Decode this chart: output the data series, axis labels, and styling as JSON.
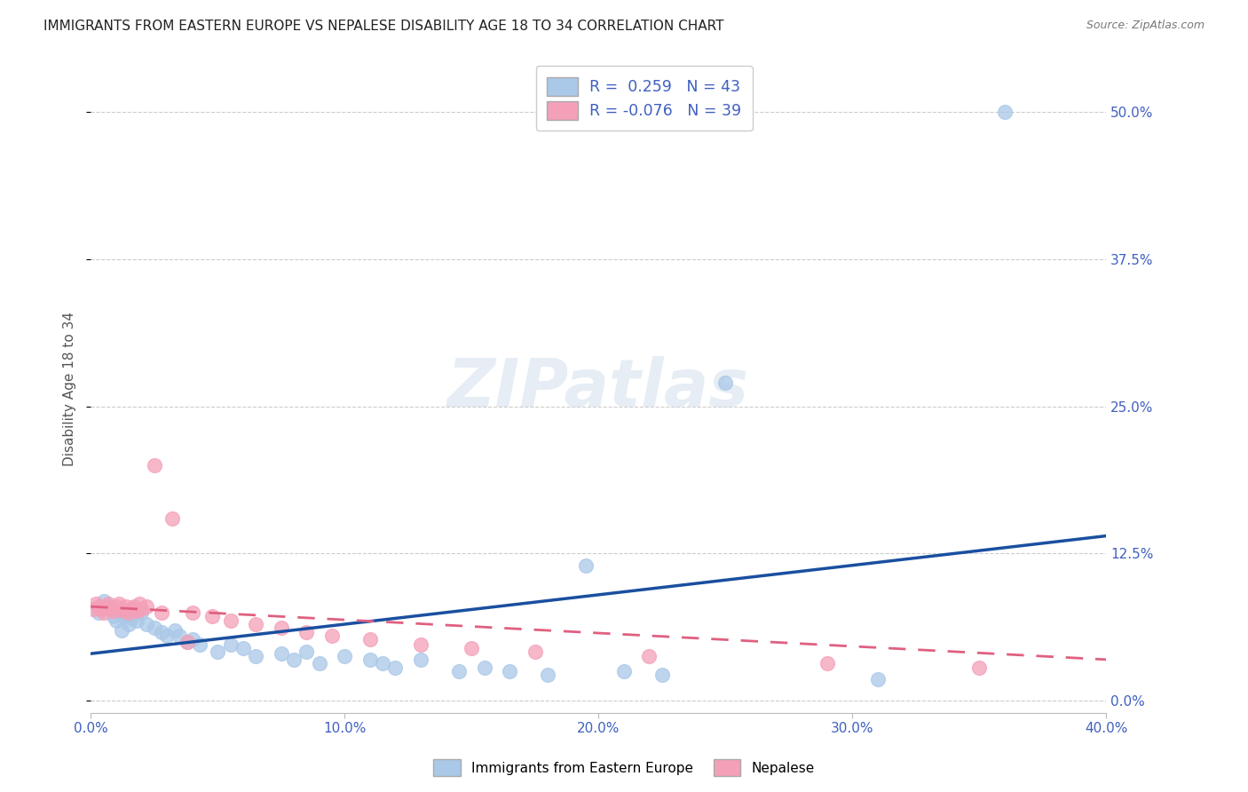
{
  "title": "IMMIGRANTS FROM EASTERN EUROPE VS NEPALESE DISABILITY AGE 18 TO 34 CORRELATION CHART",
  "source": "Source: ZipAtlas.com",
  "ylabel": "Disability Age 18 to 34",
  "xlim": [
    0.0,
    0.4
  ],
  "ylim": [
    -0.01,
    0.54
  ],
  "yticks": [
    0.0,
    0.125,
    0.25,
    0.375,
    0.5
  ],
  "ytick_labels": [
    "0.0%",
    "12.5%",
    "25.0%",
    "37.5%",
    "50.0%"
  ],
  "xticks": [
    0.0,
    0.1,
    0.2,
    0.3,
    0.4
  ],
  "xtick_labels": [
    "0.0%",
    "10.0%",
    "20.0%",
    "30.0%",
    "40.0%"
  ],
  "blue_R": 0.259,
  "blue_N": 43,
  "pink_R": -0.076,
  "pink_N": 39,
  "blue_color": "#aac8e8",
  "pink_color": "#f4a0b8",
  "blue_line_color": "#1a4fa0",
  "pink_line_color": "#e06080",
  "blue_scatter_x": [
    0.003,
    0.005,
    0.007,
    0.009,
    0.01,
    0.012,
    0.013,
    0.015,
    0.016,
    0.018,
    0.02,
    0.022,
    0.025,
    0.028,
    0.03,
    0.033,
    0.035,
    0.038,
    0.04,
    0.043,
    0.05,
    0.055,
    0.06,
    0.065,
    0.075,
    0.08,
    0.085,
    0.09,
    0.1,
    0.11,
    0.115,
    0.12,
    0.13,
    0.145,
    0.155,
    0.165,
    0.18,
    0.195,
    0.21,
    0.225,
    0.25,
    0.31,
    0.36
  ],
  "blue_scatter_y": [
    0.075,
    0.085,
    0.08,
    0.072,
    0.068,
    0.06,
    0.072,
    0.065,
    0.07,
    0.068,
    0.075,
    0.065,
    0.062,
    0.058,
    0.055,
    0.06,
    0.055,
    0.05,
    0.052,
    0.048,
    0.042,
    0.048,
    0.045,
    0.038,
    0.04,
    0.035,
    0.042,
    0.032,
    0.038,
    0.035,
    0.032,
    0.028,
    0.035,
    0.025,
    0.028,
    0.025,
    0.022,
    0.115,
    0.025,
    0.022,
    0.27,
    0.018,
    0.5
  ],
  "pink_scatter_x": [
    0.001,
    0.002,
    0.003,
    0.004,
    0.005,
    0.006,
    0.007,
    0.008,
    0.009,
    0.01,
    0.011,
    0.012,
    0.013,
    0.014,
    0.015,
    0.016,
    0.017,
    0.018,
    0.019,
    0.02,
    0.022,
    0.025,
    0.028,
    0.032,
    0.038,
    0.04,
    0.048,
    0.055,
    0.065,
    0.075,
    0.085,
    0.095,
    0.11,
    0.13,
    0.15,
    0.175,
    0.22,
    0.29,
    0.35
  ],
  "pink_scatter_y": [
    0.078,
    0.082,
    0.08,
    0.078,
    0.075,
    0.08,
    0.082,
    0.078,
    0.076,
    0.08,
    0.082,
    0.078,
    0.076,
    0.08,
    0.075,
    0.078,
    0.08,
    0.076,
    0.082,
    0.078,
    0.08,
    0.2,
    0.075,
    0.155,
    0.05,
    0.075,
    0.072,
    0.068,
    0.065,
    0.062,
    0.058,
    0.055,
    0.052,
    0.048,
    0.045,
    0.042,
    0.038,
    0.032,
    0.028
  ],
  "blue_trend_x0": 0.0,
  "blue_trend_x1": 0.4,
  "blue_trend_y0": 0.04,
  "blue_trend_y1": 0.14,
  "pink_trend_x0": 0.0,
  "pink_trend_x1": 0.4,
  "pink_trend_y0": 0.08,
  "pink_trend_y1": 0.035,
  "watermark": "ZIPatlas",
  "background_color": "#ffffff",
  "grid_color": "#cccccc",
  "title_fontsize": 11,
  "axis_color": "#4060c0",
  "label_color": "#4060c0"
}
